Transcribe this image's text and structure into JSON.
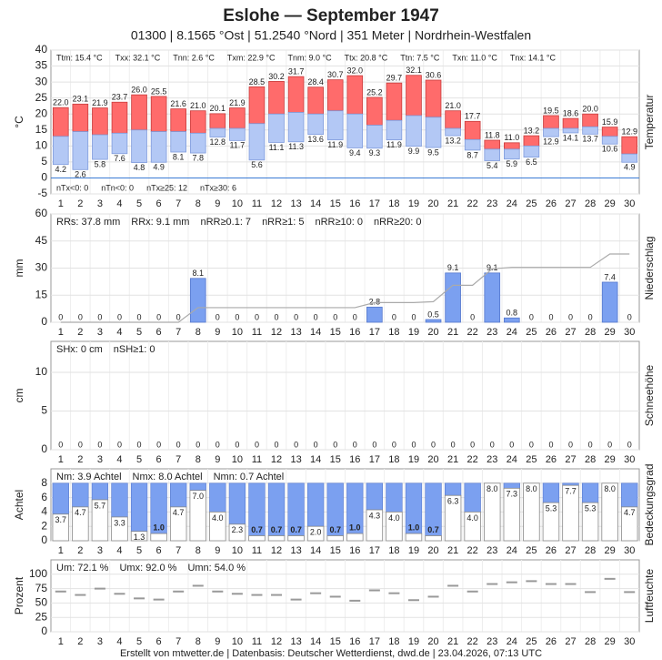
{
  "header": {
    "title": "Eslohe  —  September 1947",
    "subtitle": "01300  |  8.1565 °Ost  |  51.2540 °Nord  |  351 Meter  |  Nordrhein-Westfalen"
  },
  "days": [
    1,
    2,
    3,
    4,
    5,
    6,
    7,
    8,
    9,
    10,
    11,
    12,
    13,
    14,
    15,
    16,
    17,
    18,
    19,
    20,
    21,
    22,
    23,
    24,
    25,
    26,
    27,
    28,
    29,
    30
  ],
  "chart_data": [
    {
      "type": "floating-bar",
      "ylabel": "°C",
      "side_label": "Temperatur",
      "ylim": [
        -5,
        40
      ],
      "yticks": [
        -5,
        0,
        5,
        10,
        15,
        20,
        25,
        30,
        35,
        40
      ],
      "grid": true,
      "zero_line_color": "#3a7bd5",
      "stats": [
        "Ttm: 15.4 °C",
        "Txx: 32.1 °C",
        "Tnn: 2.6 °C",
        "Txm: 22.9 °C",
        "Tnm: 9.0 °C",
        "Ttx: 20.8 °C",
        "Ttn: 7.5 °C",
        "Txn: 11.0 °C",
        "Tnx: 14.1 °C"
      ],
      "stats_bottom": [
        "nTx<0: 0",
        "nTn<0: 0",
        "nTx≥25: 12",
        "nTx≥30: 6"
      ],
      "series": [
        {
          "color": "#ff6b6b",
          "stroke": "#c83c3c",
          "label_color": "#d04040",
          "values": [
            22.0,
            23.1,
            21.9,
            23.7,
            26.0,
            25.5,
            21.6,
            21.0,
            20.1,
            21.9,
            28.5,
            30.2,
            31.7,
            28.4,
            30.7,
            32.0,
            25.2,
            29.7,
            32.1,
            30.6,
            21.0,
            17.7,
            11.8,
            11.0,
            13.2,
            19.5,
            18.6,
            20.0,
            15.9,
            12.9
          ],
          "value_labels": [
            "22.0",
            "23.1",
            "21.9",
            "23.7",
            "26.0",
            "25.5",
            "21.6",
            "21.0",
            "20.1",
            "21.9",
            "28.5",
            "30.2",
            "31.7",
            "28.4",
            "30.7",
            "32.0",
            "25.2",
            "29.7",
            "32.1",
            "30.6",
            "21.0",
            "17.7",
            "11.8",
            "11.0",
            "13.2",
            "19.5",
            "18.6",
            "20.0",
            "15.9",
            "12.9"
          ]
        },
        {
          "color": "#b3c8f5",
          "stroke": "#7f9bdc",
          "values": [
            13,
            14.5,
            13.5,
            14,
            15,
            14.5,
            14.5,
            14,
            15.5,
            15.5,
            17,
            20,
            20.5,
            20,
            21,
            20,
            16.5,
            18,
            19.5,
            19,
            15.5,
            12,
            9,
            9,
            10,
            15.5,
            15.5,
            16,
            13,
            7.5
          ]
        },
        {
          "color": "#b3c8f5",
          "stroke": "#7f9bdc",
          "label_color": "#5577cc",
          "values": [
            4.2,
            2.6,
            5.8,
            7.6,
            4.8,
            4.9,
            8.1,
            7.8,
            12.8,
            11.7,
            5.6,
            11.1,
            11.3,
            13.6,
            11.9,
            9.4,
            9.3,
            11.9,
            9.9,
            9.5,
            13.2,
            8.7,
            5.4,
            5.9,
            6.5,
            12.9,
            14.1,
            13.7,
            10.6,
            4.9
          ],
          "value_labels": [
            "4.2",
            "2.6",
            "5.8",
            "7.6",
            "4.8",
            "4.9",
            "8.1",
            "7.8",
            "12.8",
            "11.7",
            "5.6",
            "11.1",
            "11.3",
            "13.6",
            "11.9",
            "9.4",
            "9.3",
            "11.9",
            "9.9",
            "9.5",
            "13.2",
            "8.7",
            "5.4",
            "5.9",
            "6.5",
            "12.9",
            "14.1",
            "13.7",
            "10.6",
            "4.9"
          ]
        }
      ]
    },
    {
      "type": "bar",
      "ylabel": "mm",
      "side_label": "Niederschlag",
      "ylim": [
        0,
        60
      ],
      "yticks": [
        0,
        15,
        30,
        45,
        60
      ],
      "y2lim": [
        0,
        20
      ],
      "grid": true,
      "tick_color": "#888",
      "stats": [
        "RRs: 37.8 mm",
        "RRx: 9.1 mm",
        "nRR≥0.1: 7",
        "nRR≥1: 5",
        "nRR≥10: 0",
        "nRR≥20: 0"
      ],
      "color": "#7ba0f0",
      "stroke": "#5577cc",
      "label_color": "#5577cc",
      "line_color": "#aaaaaa",
      "values": [
        0,
        0,
        0,
        0,
        0,
        0,
        0,
        8.1,
        0,
        0,
        0,
        0,
        0,
        0,
        0,
        0,
        2.8,
        0,
        0,
        0.5,
        9.1,
        0,
        9.1,
        0.8,
        0,
        0,
        0,
        0,
        7.4,
        0
      ]
    },
    {
      "type": "bar",
      "ylabel": "cm",
      "side_label": "Schneehöhe",
      "ylim": [
        0,
        14
      ],
      "yticks": [
        0,
        5,
        10
      ],
      "grid": true,
      "stats": [
        "SHx: 0 cm",
        "nSH≥1: 0"
      ],
      "color": "#c8c8c8",
      "stroke": "#999999",
      "label_color": "#999999",
      "values": [
        0,
        0,
        0,
        0,
        0,
        0,
        0,
        0,
        0,
        0,
        0,
        0,
        0,
        0,
        0,
        0,
        0,
        0,
        0,
        0,
        0,
        0,
        0,
        0,
        0,
        0,
        0,
        0,
        0,
        0
      ]
    },
    {
      "type": "cover-bar",
      "ylabel": "Achtel",
      "side_label": "Bedeckungsgrad",
      "ylim": [
        0,
        10
      ],
      "yticks": [
        0,
        2,
        4,
        6,
        8
      ],
      "grid": true,
      "stats": [
        "Nm: 3.9 Achtel",
        "Nmx: 8.0 Achtel",
        "Nmn: 0.7 Achtel"
      ],
      "color": "#7ba0f0",
      "stroke": "#5577cc",
      "values": [
        3.7,
        4.7,
        5.7,
        3.3,
        1.3,
        1.0,
        4.7,
        7.0,
        4.0,
        2.3,
        0.7,
        0.7,
        0.7,
        2.0,
        0.7,
        1.0,
        4.3,
        4.0,
        1.0,
        0.7,
        6.3,
        4.0,
        8.0,
        7.3,
        8.0,
        5.3,
        7.7,
        5.3,
        8.0,
        4.7
      ],
      "value_labels": [
        "3.7",
        "4.7",
        "5.7",
        "3.3",
        "1.3",
        "1.0",
        "4.7",
        "7.0",
        "4.0",
        "2.3",
        "0.7",
        "0.7",
        "0.7",
        "2.0",
        "0.7",
        "1.0",
        "4.3",
        "4.0",
        "1.0",
        "0.7",
        "6.3",
        "4.0",
        "8.0",
        "7.3",
        "8.0",
        "5.3",
        "7.7",
        "5.3",
        "8.0",
        "4.7"
      ]
    },
    {
      "type": "dash",
      "ylabel": "Prozent",
      "side_label": "Luftfeuchte",
      "ylim": [
        0,
        125
      ],
      "yticks": [
        0,
        25,
        50,
        75,
        100
      ],
      "grid": true,
      "stats": [
        "Um: 72.1 %",
        "Umx: 92.0 %",
        "Umn: 54.0 %"
      ],
      "color": "#999999",
      "values": [
        70,
        64,
        75,
        66,
        58,
        56,
        70,
        80,
        70,
        66,
        64,
        64,
        56,
        67,
        61,
        54,
        72,
        67,
        55,
        61,
        80,
        70,
        83,
        86,
        88,
        83,
        83,
        69,
        92,
        69
      ]
    }
  ],
  "footer": "Erstellt von mtwetter.de | Datenbasis: Deutscher Wetterdienst, dwd.de | 23.04.2026, 07:13 UTC"
}
